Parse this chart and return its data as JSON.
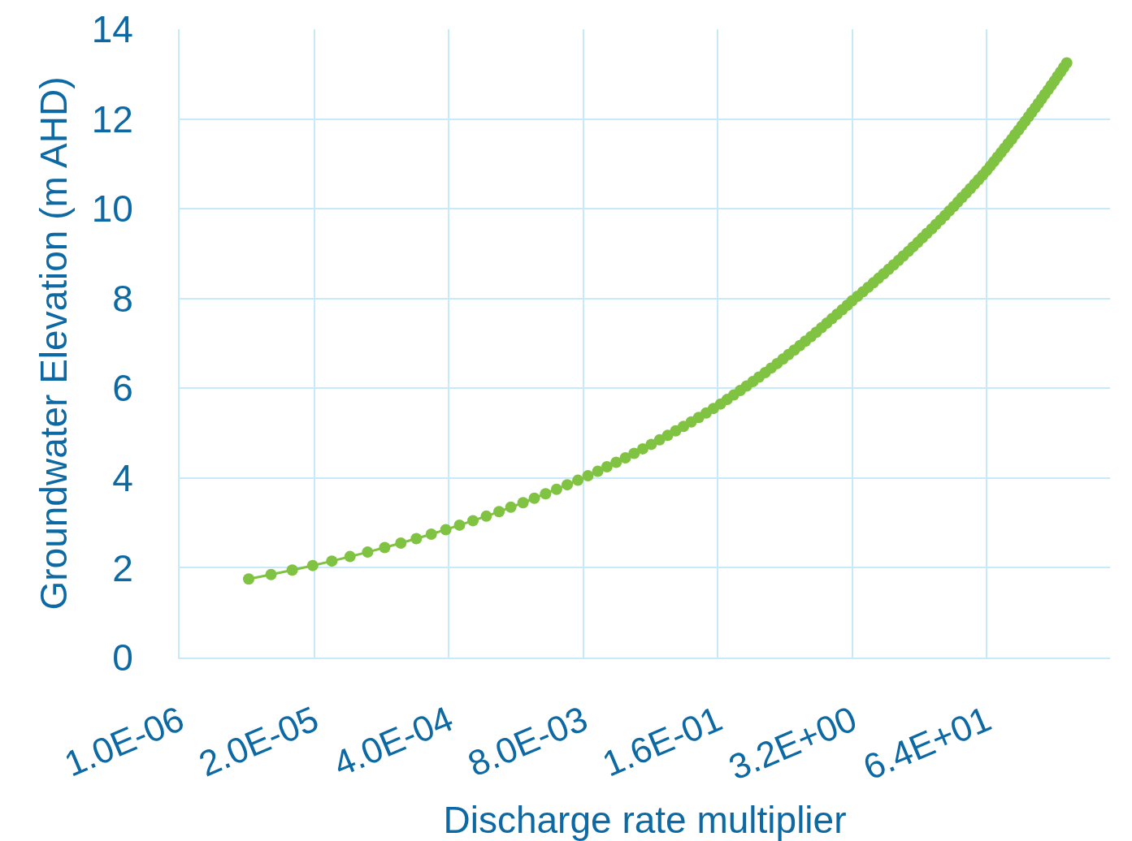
{
  "chart_data": {
    "type": "line",
    "xlabel": "Discharge rate multiplier",
    "ylabel": "Groundwater Elevation (m AHD)",
    "log": "x",
    "x": [
      4.66e-06,
      7.67e-06,
      1.23e-05,
      1.94e-05,
      2.97e-05,
      4.45e-05,
      6.59e-05,
      9.64e-05,
      0.000138,
      0.000195,
      0.000272,
      0.000376,
      0.00051,
      0.000688,
      0.000926,
      0.00123,
      0.0016,
      0.0021,
      0.0027,
      0.00347,
      0.00443,
      0.00562,
      0.00712,
      0.00891,
      0.0111,
      0.0136,
      0.0167,
      0.0205,
      0.0249,
      0.0302,
      0.0365,
      0.0439,
      0.0526,
      0.0629,
      0.0749,
      0.089,
      0.105,
      0.124,
      0.146,
      0.171,
      0.198,
      0.229,
      0.265,
      0.305,
      0.351,
      0.402,
      0.461,
      0.527,
      0.601,
      0.684,
      0.777,
      0.882,
      0.999,
      1.13,
      1.28,
      1.44,
      1.62,
      1.82,
      2.04,
      2.29,
      2.57,
      2.87,
      3.2,
      3.61,
      4.07,
      4.57,
      5.14,
      5.76,
      6.46,
      7.22,
      8.07,
      9.01,
      10,
      11.2,
      12.4,
      13.8,
      15.3,
      16.9,
      18.8,
      20.7,
      22.9,
      25.3,
      27.8,
      30.7,
      33.7,
      37,
      40.7,
      44.6,
      48.9,
      53.5,
      58.6,
      64,
      69.4,
      75.2,
      81.5,
      88.2,
      95.5,
      103,
      112,
      120,
      130,
      140,
      151,
      163,
      175,
      189,
      203,
      218,
      234,
      252,
      270,
      290,
      310,
      333,
      356,
      381
    ],
    "series": [
      {
        "color": "#80c342",
        "values": [
          1.75,
          1.85,
          1.95,
          2.05,
          2.15,
          2.25,
          2.35,
          2.45,
          2.55,
          2.65,
          2.75,
          2.85,
          2.95,
          3.05,
          3.15,
          3.25,
          3.35,
          3.45,
          3.55,
          3.65,
          3.75,
          3.85,
          3.95,
          4.05,
          4.15,
          4.25,
          4.35,
          4.45,
          4.55,
          4.65,
          4.75,
          4.85,
          4.95,
          5.05,
          5.15,
          5.25,
          5.35,
          5.45,
          5.55,
          5.65,
          5.75,
          5.85,
          5.95,
          6.05,
          6.15,
          6.25,
          6.35,
          6.45,
          6.55,
          6.65,
          6.75,
          6.85,
          6.95,
          7.05,
          7.15,
          7.25,
          7.35,
          7.45,
          7.55,
          7.65,
          7.75,
          7.85,
          7.95,
          8.05,
          8.15,
          8.25,
          8.35,
          8.45,
          8.55,
          8.65,
          8.75,
          8.85,
          8.95,
          9.05,
          9.15,
          9.25,
          9.35,
          9.45,
          9.55,
          9.65,
          9.75,
          9.85,
          9.95,
          10.05,
          10.15,
          10.25,
          10.35,
          10.45,
          10.55,
          10.65,
          10.75,
          10.85,
          10.95,
          11.05,
          11.15,
          11.25,
          11.35,
          11.45,
          11.55,
          11.65,
          11.75,
          11.85,
          11.95,
          12.05,
          12.15,
          12.25,
          12.35,
          12.45,
          12.55,
          12.65,
          12.75,
          12.85,
          12.95,
          13.05,
          13.15,
          13.25
        ]
      }
    ],
    "xlim": [
      1e-06,
      1000
    ],
    "xticks": [
      {
        "value": 1e-06,
        "label": "1.0E-06"
      },
      {
        "value": 2e-05,
        "label": "2.0E-05"
      },
      {
        "value": 0.0004,
        "label": "4.0E-04"
      },
      {
        "value": 0.008,
        "label": "8.0E-03"
      },
      {
        "value": 0.16,
        "label": "1.6E-01"
      },
      {
        "value": 3.2,
        "label": "3.2E+00"
      },
      {
        "value": 64,
        "label": "6.4E+01"
      }
    ],
    "ylim": [
      0,
      14
    ],
    "yticks": [
      0,
      2,
      4,
      6,
      8,
      10,
      12,
      14
    ],
    "grid": true,
    "marker": "circle"
  }
}
